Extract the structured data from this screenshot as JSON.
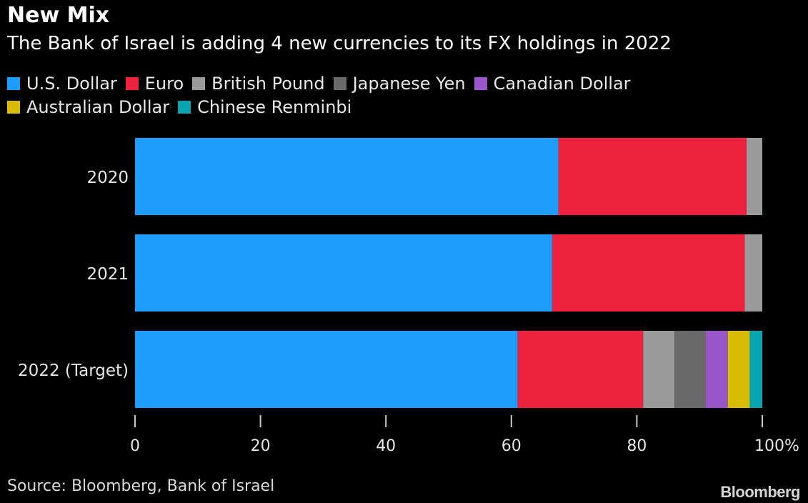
{
  "chart_data": {
    "type": "bar",
    "orientation": "horizontal",
    "stacked": true,
    "title": "New Mix",
    "subtitle": "The Bank of Israel is adding 4 new currencies to its FX holdings in 2022",
    "categories": [
      "2020",
      "2021",
      "2022 (Target)"
    ],
    "series": [
      {
        "name": "U.S. Dollar",
        "color": "#1e9efc",
        "values": [
          67.5,
          66.5,
          61
        ]
      },
      {
        "name": "Euro",
        "color": "#ee213f",
        "values": [
          30,
          30.7,
          20
        ]
      },
      {
        "name": "British Pound",
        "color": "#9b9b9b",
        "values": [
          2.5,
          2.8,
          5
        ]
      },
      {
        "name": "Japanese Yen",
        "color": "#6a6a6a",
        "values": [
          0,
          0,
          5
        ]
      },
      {
        "name": "Canadian Dollar",
        "color": "#9a55c8",
        "values": [
          0,
          0,
          3.5
        ]
      },
      {
        "name": "Australian Dollar",
        "color": "#d9bc05",
        "values": [
          0,
          0,
          3.5
        ]
      },
      {
        "name": "Chinese Renminbi",
        "color": "#0aa3b0",
        "values": [
          0,
          0,
          2
        ]
      }
    ],
    "xlim": [
      0,
      100
    ],
    "xticks": [
      0,
      20,
      40,
      60,
      80,
      100
    ],
    "xtick_labels": [
      "0",
      "20",
      "40",
      "60",
      "80",
      "100%"
    ],
    "xlabel": "",
    "ylabel": "",
    "grid": false,
    "legend_position": "top-left"
  },
  "source": "Source: Bloomberg, Bank of Israel",
  "brand": "Bloomberg",
  "colors": {
    "background": "#000000",
    "text": "#ffffff",
    "axis": "#c8c8c8"
  }
}
